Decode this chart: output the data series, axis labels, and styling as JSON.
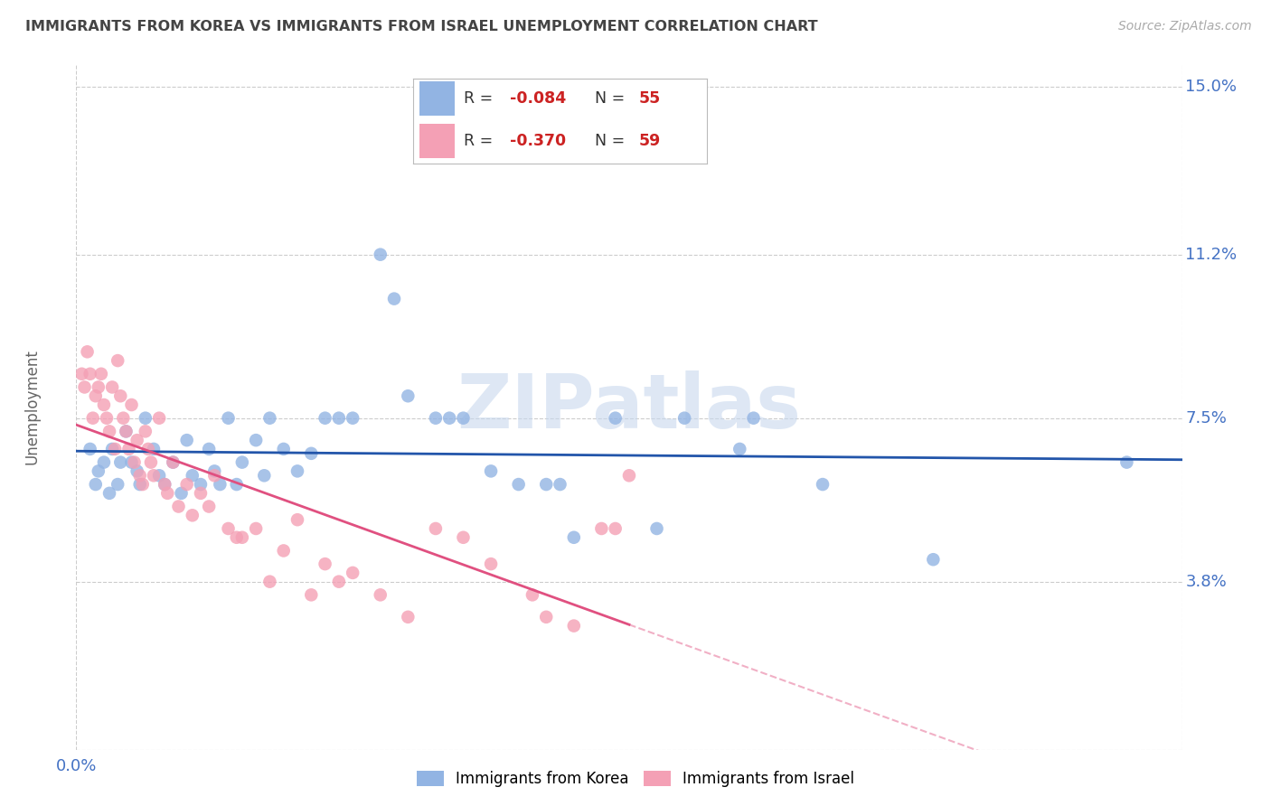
{
  "title": "IMMIGRANTS FROM KOREA VS IMMIGRANTS FROM ISRAEL UNEMPLOYMENT CORRELATION CHART",
  "source": "Source: ZipAtlas.com",
  "ylabel": "Unemployment",
  "yticks": [
    0.0,
    0.038,
    0.075,
    0.112,
    0.15
  ],
  "ytick_labels": [
    "",
    "3.8%",
    "7.5%",
    "11.2%",
    "15.0%"
  ],
  "xmin": 0.0,
  "xmax": 0.4,
  "ymin": 0.0,
  "ymax": 0.155,
  "watermark_text": "ZIPatlas",
  "watermark_color": "#c8d8ee",
  "korea_color": "#92b4e3",
  "israel_color": "#f4a0b5",
  "korea_line_color": "#2255aa",
  "israel_line_color": "#e05080",
  "background_color": "#ffffff",
  "grid_color": "#cccccc",
  "axis_label_color": "#4472c4",
  "title_color": "#444444",
  "legend_korea_r": "-0.084",
  "legend_korea_n": "55",
  "legend_israel_r": "-0.370",
  "legend_israel_n": "59",
  "legend_r_color": "#cc2222",
  "legend_n_color": "#333333",
  "legend_label_color": "#333333",
  "korea_scatter": [
    [
      0.005,
      0.068
    ],
    [
      0.007,
      0.06
    ],
    [
      0.008,
      0.063
    ],
    [
      0.01,
      0.065
    ],
    [
      0.012,
      0.058
    ],
    [
      0.013,
      0.068
    ],
    [
      0.015,
      0.06
    ],
    [
      0.016,
      0.065
    ],
    [
      0.018,
      0.072
    ],
    [
      0.02,
      0.065
    ],
    [
      0.022,
      0.063
    ],
    [
      0.023,
      0.06
    ],
    [
      0.025,
      0.075
    ],
    [
      0.028,
      0.068
    ],
    [
      0.03,
      0.062
    ],
    [
      0.032,
      0.06
    ],
    [
      0.035,
      0.065
    ],
    [
      0.038,
      0.058
    ],
    [
      0.04,
      0.07
    ],
    [
      0.042,
      0.062
    ],
    [
      0.045,
      0.06
    ],
    [
      0.048,
      0.068
    ],
    [
      0.05,
      0.063
    ],
    [
      0.052,
      0.06
    ],
    [
      0.055,
      0.075
    ],
    [
      0.058,
      0.06
    ],
    [
      0.06,
      0.065
    ],
    [
      0.065,
      0.07
    ],
    [
      0.068,
      0.062
    ],
    [
      0.07,
      0.075
    ],
    [
      0.075,
      0.068
    ],
    [
      0.08,
      0.063
    ],
    [
      0.085,
      0.067
    ],
    [
      0.09,
      0.075
    ],
    [
      0.095,
      0.075
    ],
    [
      0.1,
      0.075
    ],
    [
      0.11,
      0.112
    ],
    [
      0.115,
      0.102
    ],
    [
      0.12,
      0.08
    ],
    [
      0.13,
      0.075
    ],
    [
      0.135,
      0.075
    ],
    [
      0.14,
      0.075
    ],
    [
      0.15,
      0.063
    ],
    [
      0.16,
      0.06
    ],
    [
      0.17,
      0.06
    ],
    [
      0.175,
      0.06
    ],
    [
      0.18,
      0.048
    ],
    [
      0.195,
      0.075
    ],
    [
      0.21,
      0.05
    ],
    [
      0.22,
      0.075
    ],
    [
      0.24,
      0.068
    ],
    [
      0.245,
      0.075
    ],
    [
      0.27,
      0.06
    ],
    [
      0.31,
      0.043
    ],
    [
      0.38,
      0.065
    ]
  ],
  "israel_scatter": [
    [
      0.002,
      0.085
    ],
    [
      0.003,
      0.082
    ],
    [
      0.004,
      0.09
    ],
    [
      0.005,
      0.085
    ],
    [
      0.006,
      0.075
    ],
    [
      0.007,
      0.08
    ],
    [
      0.008,
      0.082
    ],
    [
      0.009,
      0.085
    ],
    [
      0.01,
      0.078
    ],
    [
      0.011,
      0.075
    ],
    [
      0.012,
      0.072
    ],
    [
      0.013,
      0.082
    ],
    [
      0.014,
      0.068
    ],
    [
      0.015,
      0.088
    ],
    [
      0.016,
      0.08
    ],
    [
      0.017,
      0.075
    ],
    [
      0.018,
      0.072
    ],
    [
      0.019,
      0.068
    ],
    [
      0.02,
      0.078
    ],
    [
      0.021,
      0.065
    ],
    [
      0.022,
      0.07
    ],
    [
      0.023,
      0.062
    ],
    [
      0.024,
      0.06
    ],
    [
      0.025,
      0.072
    ],
    [
      0.026,
      0.068
    ],
    [
      0.027,
      0.065
    ],
    [
      0.028,
      0.062
    ],
    [
      0.03,
      0.075
    ],
    [
      0.032,
      0.06
    ],
    [
      0.033,
      0.058
    ],
    [
      0.035,
      0.065
    ],
    [
      0.037,
      0.055
    ],
    [
      0.04,
      0.06
    ],
    [
      0.042,
      0.053
    ],
    [
      0.045,
      0.058
    ],
    [
      0.048,
      0.055
    ],
    [
      0.05,
      0.062
    ],
    [
      0.055,
      0.05
    ],
    [
      0.058,
      0.048
    ],
    [
      0.06,
      0.048
    ],
    [
      0.065,
      0.05
    ],
    [
      0.07,
      0.038
    ],
    [
      0.075,
      0.045
    ],
    [
      0.08,
      0.052
    ],
    [
      0.085,
      0.035
    ],
    [
      0.09,
      0.042
    ],
    [
      0.095,
      0.038
    ],
    [
      0.1,
      0.04
    ],
    [
      0.11,
      0.035
    ],
    [
      0.12,
      0.03
    ],
    [
      0.13,
      0.05
    ],
    [
      0.14,
      0.048
    ],
    [
      0.15,
      0.042
    ],
    [
      0.165,
      0.035
    ],
    [
      0.17,
      0.03
    ],
    [
      0.18,
      0.028
    ],
    [
      0.19,
      0.05
    ],
    [
      0.195,
      0.05
    ],
    [
      0.2,
      0.062
    ]
  ]
}
